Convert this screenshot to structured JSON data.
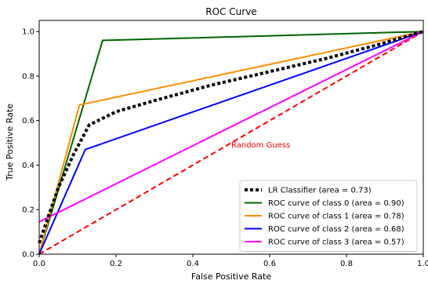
{
  "chart_data": {
    "type": "line",
    "title": "ROC Curve",
    "xlabel": "False Positive Rate",
    "ylabel": "True Positive Rate",
    "xlim": [
      0.0,
      1.0
    ],
    "ylim": [
      0.0,
      1.05
    ],
    "xticks": [
      "0.0",
      "0.2",
      "0.4",
      "0.6",
      "0.8",
      "1.0"
    ],
    "yticks": [
      "0.0",
      "0.2",
      "0.4",
      "0.6",
      "0.8",
      "1.0"
    ],
    "legend_position": "lower right",
    "annotation": {
      "text": "Random Guess",
      "x": 0.5,
      "y": 0.48,
      "color": "#ff0000"
    },
    "series": [
      {
        "name": "LR Classifier (area = 0.73)",
        "color": "#000000",
        "style": "dotted",
        "x": [
          0.0,
          0.02,
          0.05,
          0.09,
          0.13,
          0.2,
          0.3,
          0.45,
          0.6,
          0.75,
          0.88,
          1.0
        ],
        "y": [
          0.05,
          0.15,
          0.3,
          0.45,
          0.58,
          0.64,
          0.69,
          0.76,
          0.82,
          0.88,
          0.94,
          1.0
        ]
      },
      {
        "name": "ROC curve of class 0 (area = 0.90)",
        "color": "#006400",
        "style": "solid",
        "x": [
          0.0,
          0.165,
          1.0
        ],
        "y": [
          0.0,
          0.96,
          1.0
        ]
      },
      {
        "name": "ROC curve of class 1 (area = 0.78)",
        "color": "#ff8c00",
        "style": "solid",
        "x": [
          0.0,
          0.105,
          1.0
        ],
        "y": [
          0.0,
          0.67,
          1.0
        ]
      },
      {
        "name": "ROC curve of class 2 (area = 0.68)",
        "color": "#0000ff",
        "style": "solid",
        "x": [
          0.0,
          0.12,
          1.0
        ],
        "y": [
          0.0,
          0.47,
          1.0
        ]
      },
      {
        "name": "ROC curve of class 3 (area = 0.57)",
        "color": "#ff00ff",
        "style": "solid",
        "x": [
          0.0,
          1.0
        ],
        "y": [
          0.145,
          1.0
        ]
      },
      {
        "name": "",
        "color": "#ff0000",
        "style": "dashed",
        "x": [
          0.0,
          1.0
        ],
        "y": [
          0.0,
          1.0
        ]
      }
    ]
  }
}
